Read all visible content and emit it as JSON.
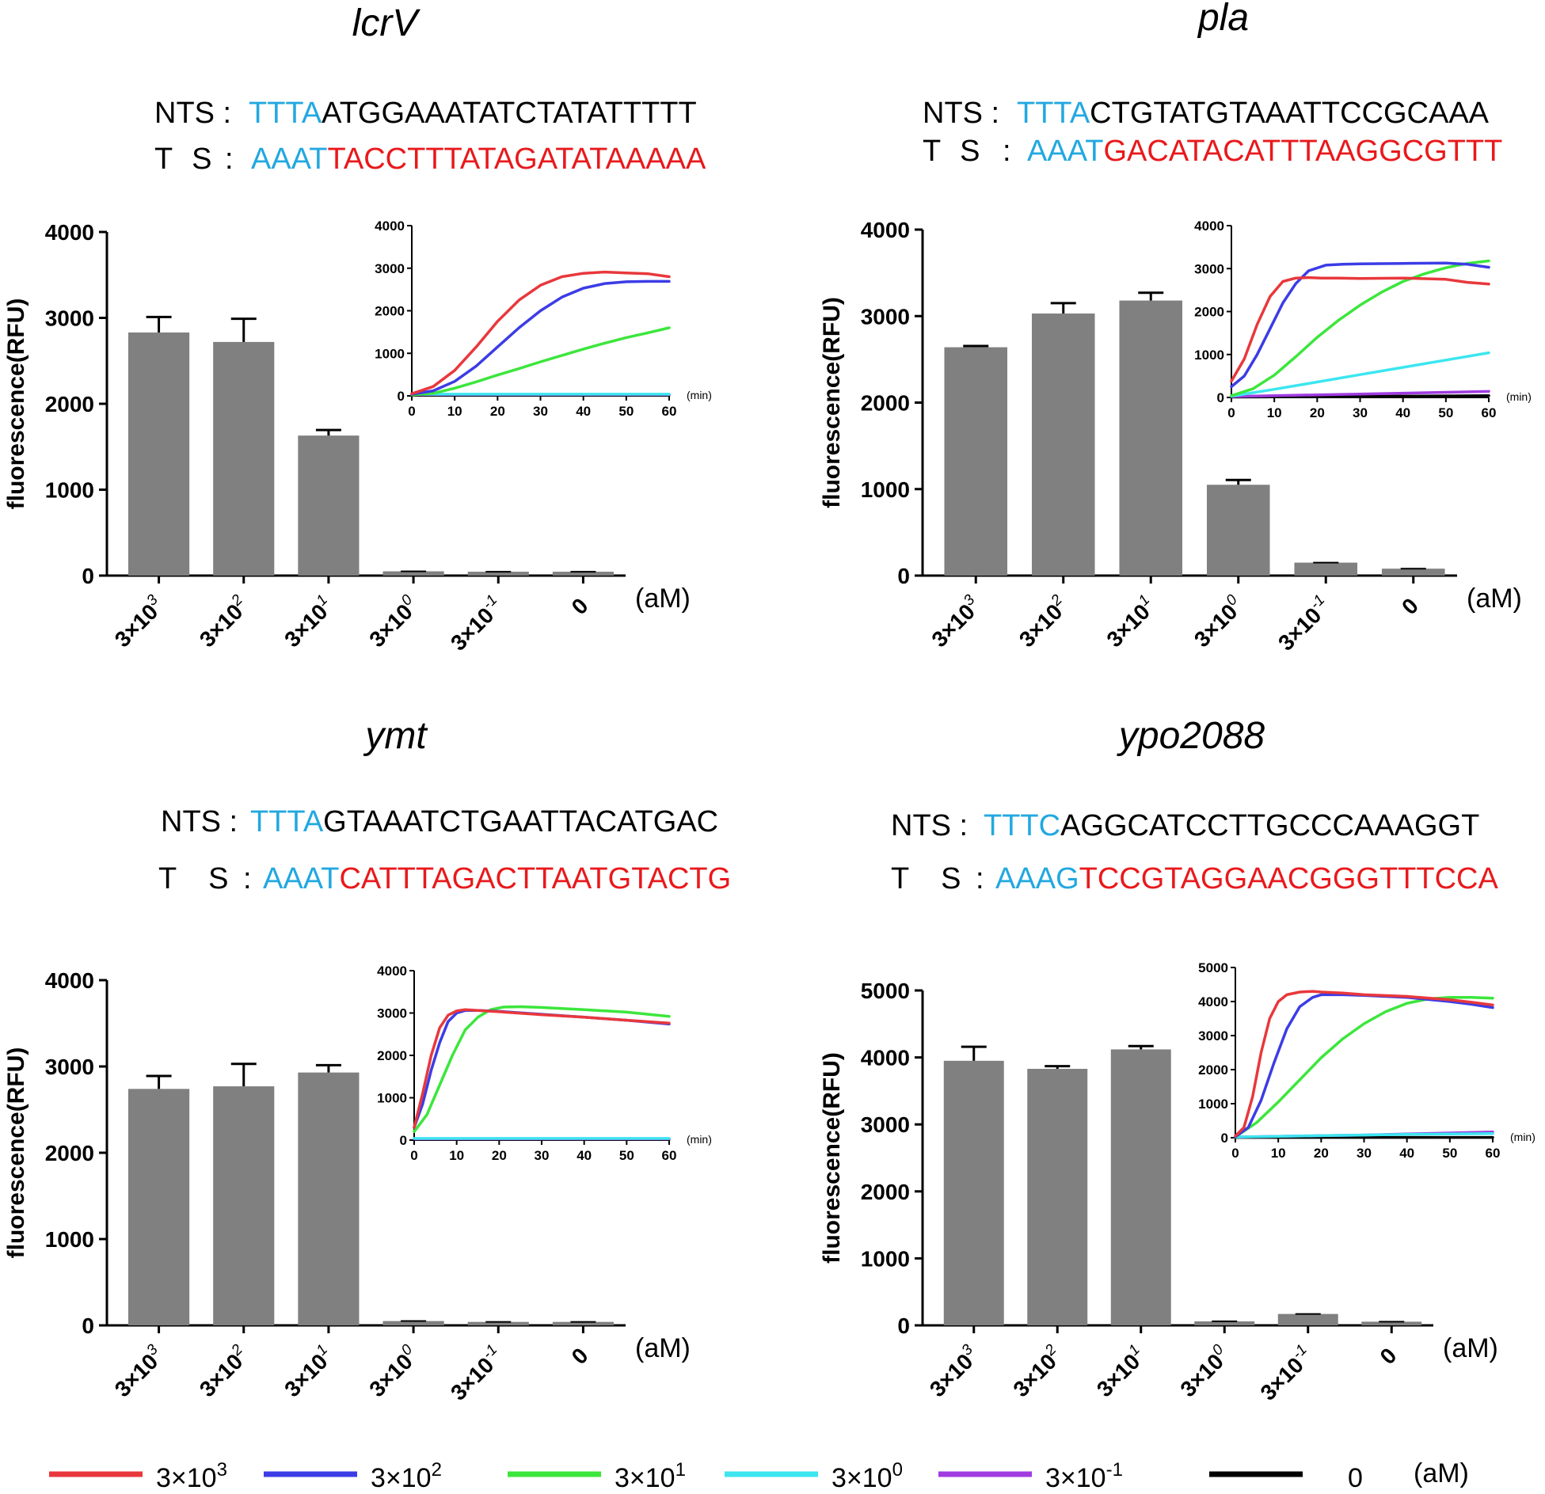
{
  "figure": {
    "concentration_unit": "(aM)",
    "inset_x_unit": "(min)",
    "y_axis_label": "fluorescence(RFU)",
    "strand_labels": {
      "nts": "NTS :",
      "ts_a": "T",
      "ts_b": "S",
      "ts_colon": ":"
    },
    "category_labels": [
      {
        "base": "3×10",
        "exp": "3"
      },
      {
        "base": "3×10",
        "exp": "2"
      },
      {
        "base": "3×10",
        "exp": "1"
      },
      {
        "base": "3×10",
        "exp": "0"
      },
      {
        "base": "3×10",
        "exp": "-1"
      },
      {
        "base": "0",
        "exp": ""
      }
    ],
    "colors": {
      "pam": "#22a8e0",
      "target": "#e8191c",
      "bar": "#808080",
      "series": [
        "#e8383c",
        "#3c3ce6",
        "#3ce63c",
        "#3ce6f0",
        "#a03ce0",
        "#000000"
      ]
    }
  },
  "legend": {
    "items": [
      {
        "base": "3×10",
        "exp": "3"
      },
      {
        "base": "3×10",
        "exp": "2"
      },
      {
        "base": "3×10",
        "exp": "1"
      },
      {
        "base": "3×10",
        "exp": "0"
      },
      {
        "base": "3×10",
        "exp": "-1"
      },
      {
        "base": "0",
        "exp": ""
      }
    ],
    "unit": "(aM)"
  },
  "chart_data": [
    {
      "type": "bar",
      "title": "lcrV",
      "nts": {
        "pam": "TTTA",
        "rest": "ATGGAAATATCTATATTTTT"
      },
      "ts": {
        "pam": "AAAT",
        "rest": "TACCTTTATAGATATAAAAA"
      },
      "ylabel": "fluorescence(RFU)",
      "xlabel": "(aM)",
      "ylim": [
        0,
        4000
      ],
      "yticks": [
        0,
        1000,
        2000,
        3000,
        4000
      ],
      "values": [
        2830,
        2720,
        1630,
        50,
        45,
        45
      ],
      "errors": [
        180,
        270,
        65,
        0,
        0,
        0
      ],
      "inset": {
        "type": "line",
        "xlabel": "(min)",
        "xlim": [
          0,
          60
        ],
        "xticks": [
          0,
          10,
          20,
          30,
          40,
          50,
          60
        ],
        "ylim": [
          0,
          4000
        ],
        "yticks": [
          0,
          1000,
          2000,
          3000,
          4000
        ],
        "series": [
          {
            "name": "3×10^3",
            "x": [
              0,
              5,
              10,
              15,
              20,
              25,
              30,
              35,
              40,
              45,
              50,
              55,
              60
            ],
            "y": [
              50,
              220,
              600,
              1150,
              1750,
              2250,
              2600,
              2800,
              2880,
              2910,
              2890,
              2870,
              2800
            ]
          },
          {
            "name": "3×10^2",
            "x": [
              0,
              5,
              10,
              15,
              20,
              25,
              30,
              35,
              40,
              45,
              50,
              55,
              60
            ],
            "y": [
              40,
              120,
              340,
              700,
              1150,
              1600,
              2000,
              2320,
              2530,
              2640,
              2680,
              2690,
              2690
            ]
          },
          {
            "name": "3×10^1",
            "x": [
              0,
              5,
              10,
              15,
              20,
              25,
              30,
              35,
              40,
              45,
              50,
              55,
              60
            ],
            "y": [
              20,
              60,
              180,
              330,
              490,
              640,
              800,
              950,
              1100,
              1240,
              1370,
              1480,
              1600
            ]
          },
          {
            "name": "3×10^0",
            "x": [
              0,
              10,
              20,
              30,
              40,
              50,
              60
            ],
            "y": [
              40,
              40,
              40,
              40,
              40,
              40,
              40
            ]
          },
          {
            "name": "3×10^-1",
            "x": [
              0,
              10,
              20,
              30,
              40,
              50,
              60
            ],
            "y": [
              30,
              30,
              30,
              30,
              30,
              30,
              30
            ]
          },
          {
            "name": "0",
            "x": [
              0,
              10,
              20,
              30,
              40,
              50,
              60
            ],
            "y": [
              20,
              20,
              20,
              20,
              20,
              20,
              20
            ]
          }
        ]
      }
    },
    {
      "type": "bar",
      "title": "pla",
      "nts": {
        "pam": "TTTA",
        "rest": "CTGTATGTAAATTCCGCAAA"
      },
      "ts": {
        "pam": "AAAT",
        "rest": "GACATACATTTAAGGCGTTT"
      },
      "ylabel": "fluorescence(RFU)",
      "xlabel": "(aM)",
      "ylim": [
        0,
        4000
      ],
      "yticks": [
        0,
        1000,
        2000,
        3000,
        4000
      ],
      "values": [
        2640,
        3030,
        3180,
        1050,
        150,
        80
      ],
      "errors": [
        15,
        120,
        90,
        55,
        0,
        0
      ],
      "inset": {
        "type": "line",
        "xlabel": "(min)",
        "xlim": [
          0,
          60
        ],
        "xticks": [
          0,
          10,
          20,
          30,
          40,
          50,
          60
        ],
        "ylim": [
          0,
          4000
        ],
        "yticks": [
          0,
          1000,
          2000,
          3000,
          4000
        ],
        "series": [
          {
            "name": "3×10^3",
            "x": [
              0,
              3,
              6,
              9,
              12,
              15,
              18,
              21,
              25,
              30,
              40,
              50,
              55,
              60
            ],
            "y": [
              380,
              900,
              1700,
              2350,
              2700,
              2780,
              2790,
              2780,
              2780,
              2770,
              2780,
              2750,
              2680,
              2640
            ]
          },
          {
            "name": "3×10^2",
            "x": [
              0,
              3,
              6,
              9,
              12,
              15,
              18,
              22,
              26,
              30,
              40,
              50,
              55,
              60
            ],
            "y": [
              250,
              500,
              1000,
              1600,
              2200,
              2650,
              2950,
              3080,
              3100,
              3110,
              3120,
              3130,
              3100,
              3030
            ]
          },
          {
            "name": "3×10^1",
            "x": [
              0,
              5,
              10,
              15,
              20,
              25,
              30,
              35,
              40,
              45,
              50,
              55,
              60
            ],
            "y": [
              40,
              200,
              520,
              950,
              1400,
              1800,
              2150,
              2450,
              2700,
              2880,
              3020,
              3120,
              3180
            ]
          },
          {
            "name": "3×10^0",
            "x": [
              0,
              10,
              20,
              30,
              40,
              50,
              60
            ],
            "y": [
              30,
              190,
              360,
              530,
              700,
              870,
              1040
            ]
          },
          {
            "name": "3×10^-1",
            "x": [
              0,
              10,
              20,
              30,
              40,
              50,
              60
            ],
            "y": [
              20,
              40,
              60,
              80,
              100,
              120,
              140
            ]
          },
          {
            "name": "0",
            "x": [
              0,
              10,
              20,
              30,
              40,
              50,
              60
            ],
            "y": [
              10,
              15,
              20,
              25,
              30,
              35,
              40
            ]
          }
        ]
      }
    },
    {
      "type": "bar",
      "title": "ymt",
      "nts": {
        "pam": "TTTA",
        "rest": "GTAAATCTGAATTACATGAC"
      },
      "ts": {
        "pam": "AAAT",
        "rest": "CATTTAGACTTAATGTACTG"
      },
      "ylabel": "fluorescence(RFU)",
      "xlabel": "(aM)",
      "ylim": [
        0,
        4000
      ],
      "yticks": [
        0,
        1000,
        2000,
        3000,
        4000
      ],
      "values": [
        2740,
        2770,
        2930,
        50,
        40,
        40
      ],
      "errors": [
        150,
        260,
        85,
        0,
        0,
        0
      ],
      "inset": {
        "type": "line",
        "xlabel": "(min)",
        "xlim": [
          0,
          60
        ],
        "xticks": [
          0,
          10,
          20,
          30,
          40,
          50,
          60
        ],
        "ylim": [
          0,
          4000
        ],
        "yticks": [
          0,
          1000,
          2000,
          3000,
          4000
        ],
        "series": [
          {
            "name": "3×10^3",
            "x": [
              0,
              2,
              4,
              6,
              8,
              10,
              12,
              15,
              20,
              30,
              40,
              50,
              60
            ],
            "y": [
              300,
              1100,
              2000,
              2650,
              2950,
              3050,
              3080,
              3060,
              3030,
              2960,
              2900,
              2830,
              2760
            ]
          },
          {
            "name": "3×10^2",
            "x": [
              0,
              2,
              4,
              6,
              8,
              10,
              12,
              15,
              20,
              30,
              40,
              50,
              60
            ],
            "y": [
              300,
              850,
              1650,
              2300,
              2800,
              3000,
              3060,
              3060,
              3040,
              2970,
              2900,
              2830,
              2740
            ]
          },
          {
            "name": "3×10^1",
            "x": [
              0,
              3,
              6,
              9,
              12,
              15,
              18,
              21,
              25,
              30,
              40,
              50,
              60
            ],
            "y": [
              200,
              600,
              1300,
              2000,
              2600,
              2900,
              3080,
              3140,
              3150,
              3130,
              3080,
              3020,
              2920
            ]
          },
          {
            "name": "3×10^0",
            "x": [
              0,
              10,
              20,
              30,
              40,
              50,
              60
            ],
            "y": [
              40,
              40,
              40,
              40,
              40,
              40,
              40
            ]
          },
          {
            "name": "3×10^-1",
            "x": [
              0,
              10,
              20,
              30,
              40,
              50,
              60
            ],
            "y": [
              30,
              30,
              30,
              30,
              30,
              30,
              30
            ]
          },
          {
            "name": "0",
            "x": [
              0,
              10,
              20,
              30,
              40,
              50,
              60
            ],
            "y": [
              20,
              20,
              20,
              20,
              20,
              20,
              20
            ]
          }
        ]
      }
    },
    {
      "type": "bar",
      "title": "ypo2088",
      "nts": {
        "pam": "TTTC",
        "rest": "AGGCATCCTTGCCCAAAGGT"
      },
      "ts": {
        "pam": "AAAG",
        "rest": "TCCGTAGGAACGGGTTTCCA"
      },
      "ylabel": "fluorescence(RFU)",
      "xlabel": "(aM)",
      "ylim": [
        0,
        5000
      ],
      "yticks": [
        0,
        1000,
        2000,
        3000,
        4000,
        5000
      ],
      "values": [
        3950,
        3830,
        4120,
        60,
        170,
        55
      ],
      "errors": [
        210,
        40,
        50,
        0,
        0,
        0
      ],
      "inset": {
        "type": "line",
        "xlabel": "(min)",
        "xlim": [
          0,
          60
        ],
        "xticks": [
          0,
          10,
          20,
          30,
          40,
          50,
          60
        ],
        "ylim": [
          0,
          5000
        ],
        "yticks": [
          0,
          1000,
          2000,
          3000,
          4000,
          5000
        ],
        "series": [
          {
            "name": "3×10^3",
            "x": [
              0,
              2,
              4,
              6,
              8,
              10,
              12,
              15,
              18,
              20,
              25,
              30,
              40,
              50,
              55,
              60
            ],
            "y": [
              50,
              300,
              1200,
              2500,
              3500,
              4000,
              4200,
              4280,
              4300,
              4280,
              4250,
              4200,
              4150,
              4050,
              3980,
              3900
            ]
          },
          {
            "name": "3×10^2",
            "x": [
              0,
              3,
              6,
              9,
              12,
              15,
              18,
              20,
              25,
              30,
              40,
              50,
              55,
              60
            ],
            "y": [
              30,
              300,
              1100,
              2200,
              3200,
              3850,
              4120,
              4200,
              4200,
              4180,
              4120,
              4000,
              3920,
              3820
            ]
          },
          {
            "name": "3×10^1",
            "x": [
              0,
              5,
              10,
              15,
              20,
              25,
              30,
              35,
              40,
              45,
              50,
              55,
              60
            ],
            "y": [
              20,
              450,
              1050,
              1700,
              2350,
              2900,
              3350,
              3700,
              3950,
              4080,
              4120,
              4120,
              4100
            ]
          },
          {
            "name": "3×10^0",
            "x": [
              0,
              10,
              20,
              30,
              40,
              50,
              60
            ],
            "y": [
              20,
              40,
              60,
              80,
              100,
              110,
              120
            ]
          },
          {
            "name": "3×10^-1",
            "x": [
              0,
              10,
              20,
              30,
              40,
              50,
              60
            ],
            "y": [
              20,
              40,
              60,
              80,
              110,
              140,
              170
            ]
          },
          {
            "name": "0",
            "x": [
              0,
              10,
              20,
              30,
              40,
              50,
              60
            ],
            "y": [
              10,
              10,
              10,
              10,
              10,
              10,
              10
            ]
          }
        ]
      }
    }
  ]
}
